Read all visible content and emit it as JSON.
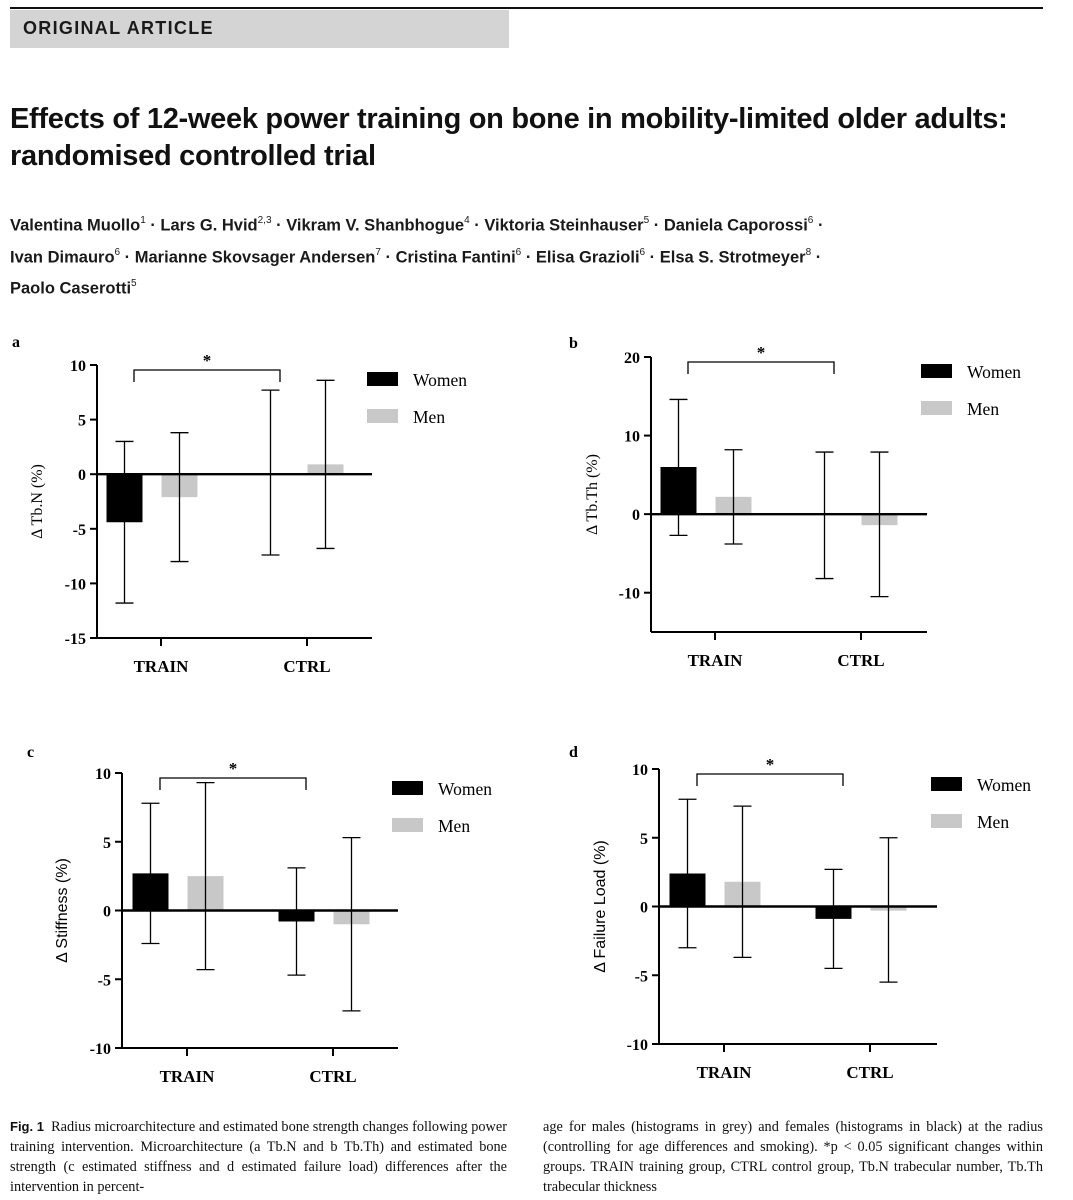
{
  "header": {
    "banner": "ORIGINAL ARTICLE"
  },
  "article": {
    "title": "Effects of 12-week power training on bone in mobility-limited older adults: randomised controlled trial",
    "authors": [
      {
        "name": "Valentina Muollo",
        "aff": "1"
      },
      {
        "name": "Lars G. Hvid",
        "aff": "2,3"
      },
      {
        "name": "Vikram V. Shanbhogue",
        "aff": "4"
      },
      {
        "name": "Viktoria Steinhauser",
        "aff": "5"
      },
      {
        "name": "Daniela Caporossi",
        "aff": "6"
      },
      {
        "name": "Ivan Dimauro",
        "aff": "6"
      },
      {
        "name": "Marianne Skovsager Andersen",
        "aff": "7"
      },
      {
        "name": "Cristina Fantini",
        "aff": "6"
      },
      {
        "name": "Elisa Grazioli",
        "aff": "6"
      },
      {
        "name": "Elsa S. Strotmeyer",
        "aff": "8"
      },
      {
        "name": "Paolo Caserotti",
        "aff": "5"
      }
    ]
  },
  "colors": {
    "women": "#000000",
    "men": "#c8c8c8"
  },
  "chart_data": [
    {
      "panel": "a",
      "type": "bar",
      "categories": [
        "TRAIN",
        "CTRL"
      ],
      "ylabel": "Δ Tb.N (%)",
      "ylim": [
        -15,
        10
      ],
      "yticks": [
        10,
        5,
        0,
        -5,
        -10,
        -15
      ],
      "sig_label": "*",
      "sig_between": [
        "TRAIN",
        "CTRL"
      ],
      "series": [
        {
          "name": "Women",
          "values": [
            -4.4,
            0.0
          ],
          "err_low": [
            -11.8,
            -7.4
          ],
          "err_high": [
            3.0,
            7.7
          ]
        },
        {
          "name": "Men",
          "values": [
            -2.1,
            0.9
          ],
          "err_low": [
            -8.0,
            -6.8
          ],
          "err_high": [
            3.8,
            8.6
          ]
        }
      ]
    },
    {
      "panel": "b",
      "type": "bar",
      "categories": [
        "TRAIN",
        "CTRL"
      ],
      "ylabel": "Δ Tb.Th (%)",
      "ylim": [
        -15,
        20
      ],
      "yticks": [
        20,
        10,
        0,
        -10
      ],
      "sig_label": "*",
      "sig_between": [
        "TRAIN",
        "CTRL"
      ],
      "series": [
        {
          "name": "Women",
          "values": [
            6.0,
            0.0
          ],
          "err_low": [
            -2.7,
            -8.2
          ],
          "err_high": [
            14.6,
            7.9
          ]
        },
        {
          "name": "Men",
          "values": [
            2.2,
            -1.4
          ],
          "err_low": [
            -3.8,
            -10.5
          ],
          "err_high": [
            8.2,
            7.9
          ]
        }
      ]
    },
    {
      "panel": "c",
      "type": "bar",
      "categories": [
        "TRAIN",
        "CTRL"
      ],
      "ylabel": "Δ Stiffness (%)",
      "ylim": [
        -10,
        10
      ],
      "yticks": [
        10,
        5,
        0,
        -5,
        -10
      ],
      "sig_label": "*",
      "sig_between": [
        "TRAIN",
        "CTRL"
      ],
      "series": [
        {
          "name": "Women",
          "values": [
            2.7,
            -0.8
          ],
          "err_low": [
            -2.4,
            -4.7
          ],
          "err_high": [
            7.8,
            3.1
          ]
        },
        {
          "name": "Men",
          "values": [
            2.5,
            -1.0
          ],
          "err_low": [
            -4.3,
            -7.3
          ],
          "err_high": [
            9.3,
            5.3
          ]
        }
      ]
    },
    {
      "panel": "d",
      "type": "bar",
      "categories": [
        "TRAIN",
        "CTRL"
      ],
      "ylabel": "Δ Failure Load (%)",
      "ylim": [
        -10,
        10
      ],
      "yticks": [
        10,
        5,
        0,
        -5,
        -10
      ],
      "sig_label": "*",
      "sig_between": [
        "TRAIN",
        "CTRL"
      ],
      "series": [
        {
          "name": "Women",
          "values": [
            2.4,
            -0.9
          ],
          "err_low": [
            -3.0,
            -4.5
          ],
          "err_high": [
            7.8,
            2.7
          ]
        },
        {
          "name": "Men",
          "values": [
            1.8,
            -0.3
          ],
          "err_low": [
            -3.7,
            -5.5
          ],
          "err_high": [
            7.3,
            5.0
          ]
        }
      ]
    }
  ],
  "caption": {
    "label": "Fig. 1",
    "left": "Radius microarchitecture and estimated bone strength changes following power training intervention. Microarchitecture (a Tb.N and b Tb.Th) and estimated bone strength (c estimated stiffness and d estimated failure load) differences after the intervention in percent-",
    "right": "age for males (histograms in grey) and females (histograms in black) at the radius (controlling for age differences and smoking). *p < 0.05 significant changes within groups. TRAIN training group, CTRL control group, Tb.N trabecular number, Tb.Th trabecular thickness"
  }
}
